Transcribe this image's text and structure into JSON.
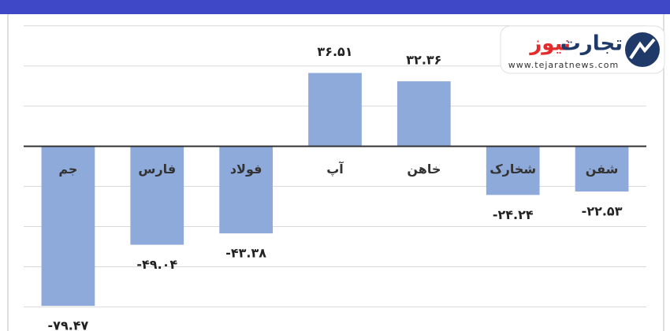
{
  "chart_data": {
    "type": "bar",
    "categories": [
      "جم",
      "فارس",
      "فولاد",
      "آپ",
      "خاهن",
      "شخارک",
      "شفن"
    ],
    "values": [
      -79.47,
      -49.04,
      -43.38,
      36.51,
      32.36,
      -24.24,
      -22.53
    ],
    "value_labels": [
      "-۷۹.۴۷",
      "-۴۹.۰۴",
      "-۴۳.۳۸",
      "۳۶.۵۱",
      "۳۲.۳۶",
      "-۲۴.۲۴",
      "-۲۲.۵۳"
    ],
    "color": "#8eaadb",
    "ylim": [
      -92,
      65
    ],
    "yticks": [
      -80,
      -60,
      -40,
      -20,
      0,
      20,
      40,
      60
    ],
    "grid": true
  },
  "logo": {
    "word_1": "تجارت",
    "word_2": "نیوز",
    "url": "www.tejaratnews.com"
  }
}
